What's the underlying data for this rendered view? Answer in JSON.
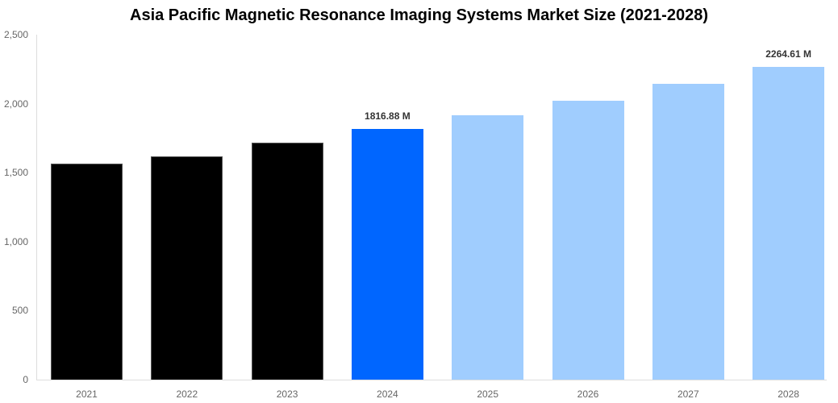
{
  "chart_data": {
    "type": "bar",
    "title": "Asia Pacific Magnetic Resonance Imaging Systems Market Size (2021-2028)",
    "xlabel": "",
    "ylabel": "",
    "categories": [
      "2021",
      "2022",
      "2023",
      "2024",
      "2025",
      "2026",
      "2027",
      "2028"
    ],
    "values": [
      1565,
      1621,
      1717,
      1816.88,
      1915,
      2024,
      2141,
      2264.61
    ],
    "series_type": [
      "historical",
      "historical",
      "historical",
      "current",
      "forecast",
      "forecast",
      "forecast",
      "forecast"
    ],
    "data_labels": {
      "3": "1816.88 M",
      "7": "2264.61 M"
    },
    "ylim": [
      0,
      2500
    ],
    "yticks": [
      "0",
      "500",
      "1,000",
      "1,500",
      "2,000",
      "2,500"
    ],
    "grid": false,
    "legend": "none",
    "colors": {
      "historical": "#000000",
      "current": "#0066ff",
      "forecast": "#a0cdfe"
    }
  }
}
